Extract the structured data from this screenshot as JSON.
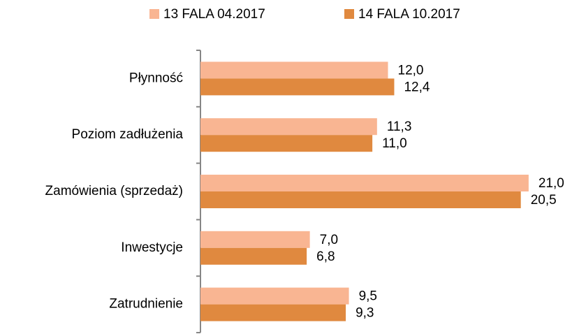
{
  "chart_data": {
    "type": "hbar",
    "categories": [
      "Płynność",
      "Poziom zadłużenia",
      "Zamówienia (sprzedaż)",
      "Inwestycje",
      "Zatrudnienie"
    ],
    "series": [
      {
        "name": "13 FALA 04.2017",
        "color": "#f9b592",
        "values": [
          12.0,
          11.3,
          21.0,
          7.0,
          9.5
        ],
        "value_labels": [
          "12,0",
          "11,3",
          "21,0",
          "7,0",
          "9,5"
        ]
      },
      {
        "name": "14 FALA 10.2017",
        "color": "#e0893f",
        "values": [
          12.4,
          11.0,
          20.5,
          6.8,
          9.3
        ],
        "value_labels": [
          "12,4",
          "11,0",
          "20,5",
          "6,8",
          "9,3"
        ]
      }
    ],
    "xlim": [
      0,
      24
    ],
    "legend": "top"
  }
}
